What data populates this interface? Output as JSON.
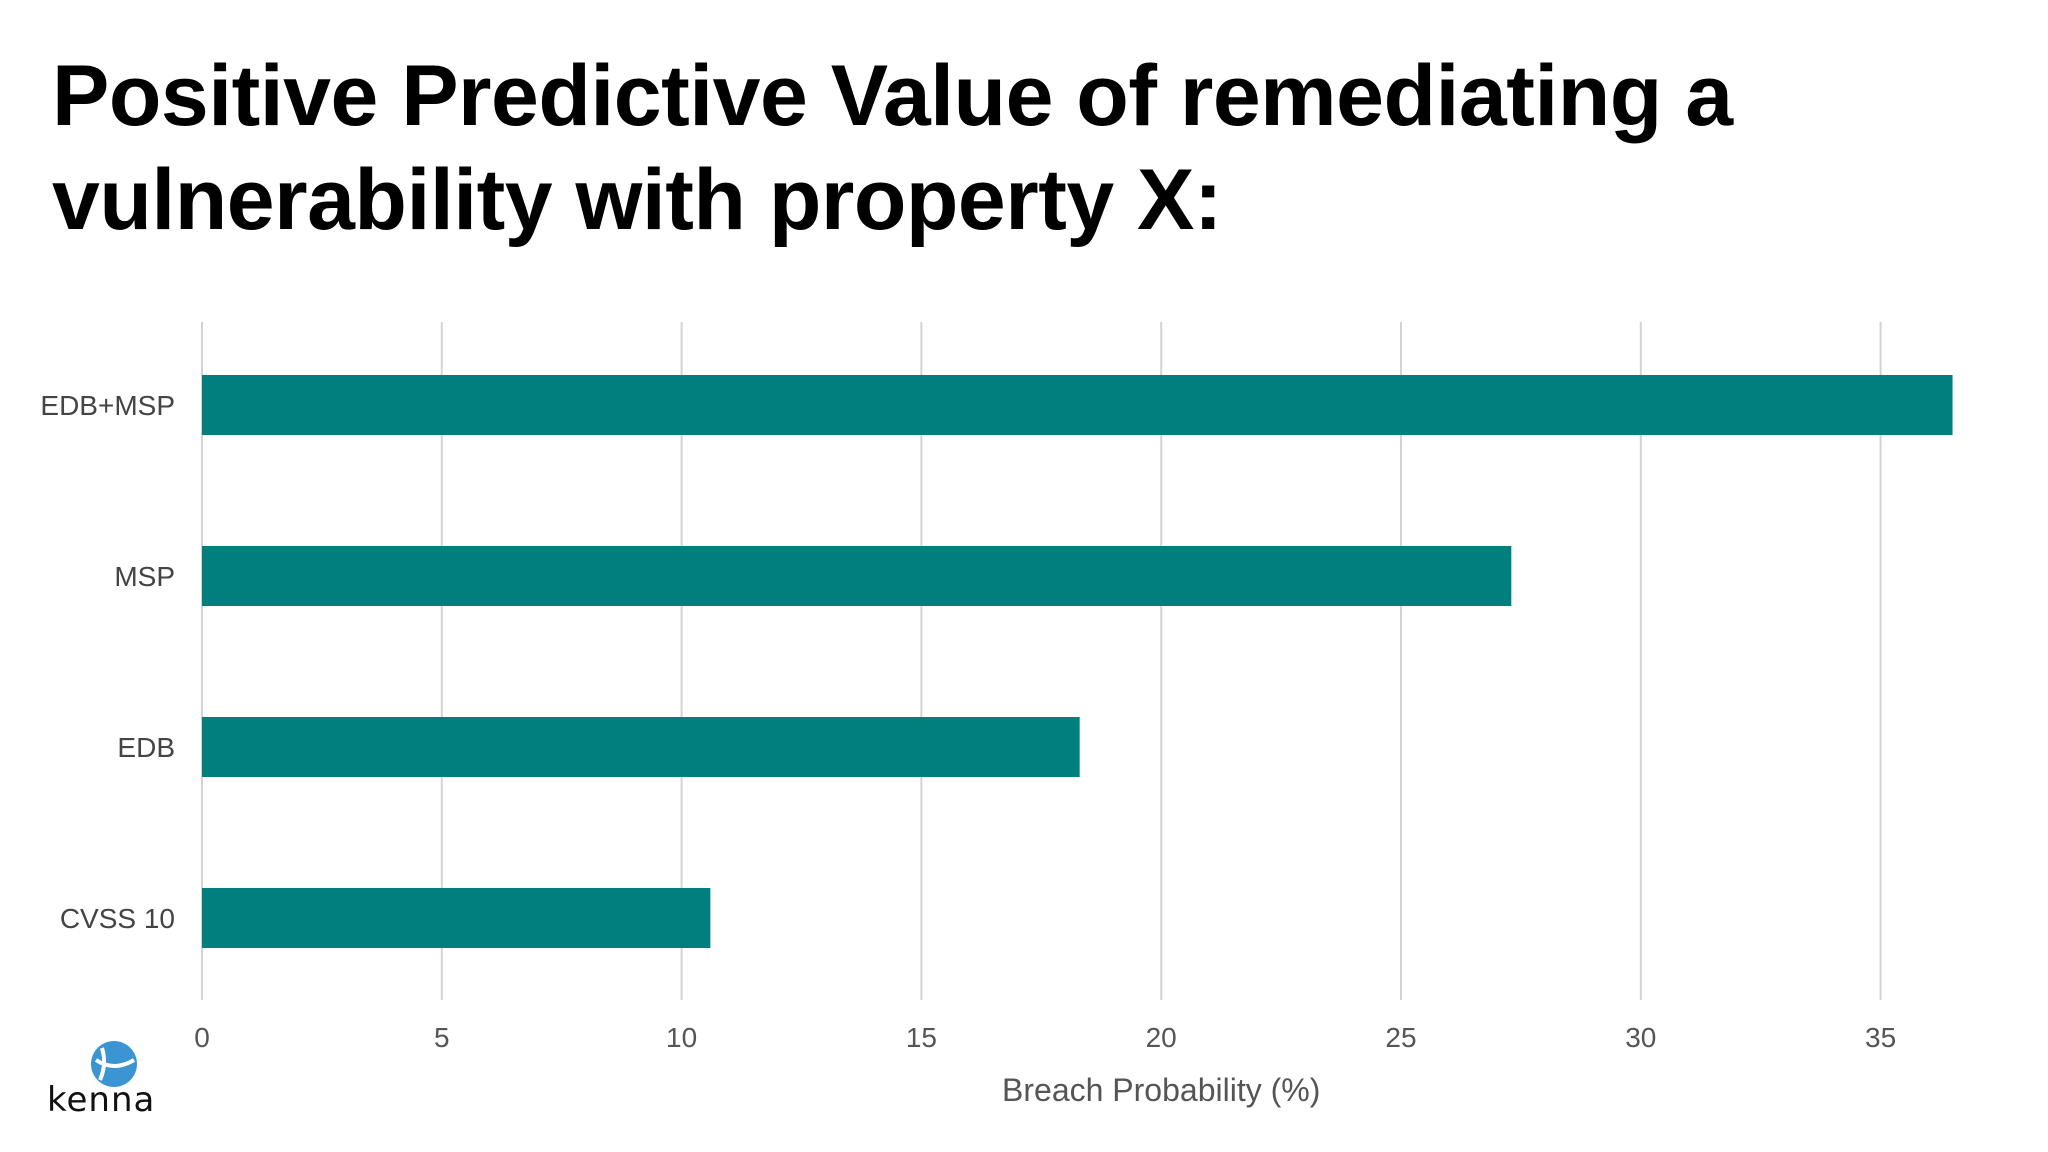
{
  "slide": {
    "title_line1": "Positive Predictive Value of remediating a",
    "title_line2": "vulnerability with property X:"
  },
  "chart_data": {
    "type": "bar",
    "orientation": "horizontal",
    "categories": [
      "EDB+MSP",
      "MSP",
      "EDB",
      "CVSS 10"
    ],
    "values": [
      36.5,
      27.3,
      18.3,
      10.6
    ],
    "xlabel": "Breach Probability (%)",
    "ylabel": "",
    "xlim": [
      0,
      37.5
    ],
    "xticks": [
      0,
      5,
      10,
      15,
      20,
      25,
      30,
      35
    ],
    "grid": "vertical",
    "bar_color": "#007f7e",
    "grid_color": "#d3d3d3"
  },
  "logo": {
    "text": "kenna",
    "color": "#3b95d3"
  }
}
